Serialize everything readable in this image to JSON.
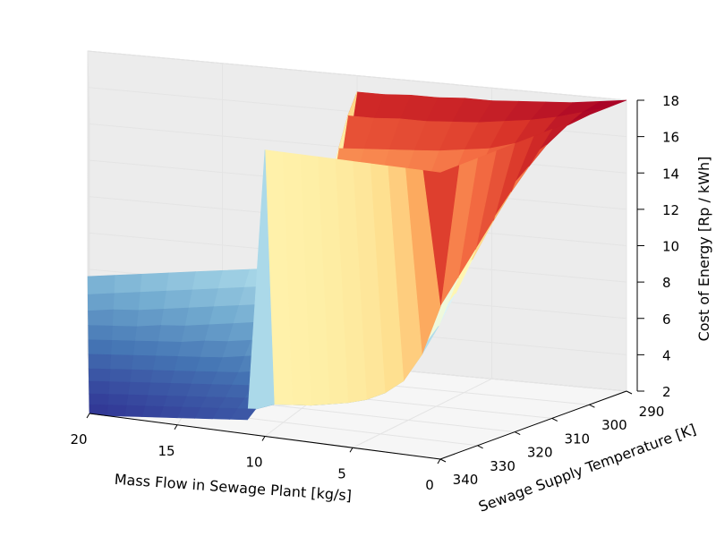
{
  "chart_data": {
    "type": "surface3d",
    "title": "",
    "colormap": "RdYlBu_r",
    "x_axis": {
      "label": "Mass Flow in Sewage Plant [kg/s]",
      "range": [
        0,
        20
      ],
      "ticks": [
        20,
        15,
        10,
        5,
        0
      ],
      "tick_labels": [
        "20",
        "15",
        "10",
        "5",
        "0"
      ]
    },
    "y_axis": {
      "label": "Sewage Supply Temperature [K]",
      "range": [
        290,
        340
      ],
      "ticks": [
        340,
        330,
        320,
        310,
        300,
        290
      ],
      "tick_labels": [
        "340",
        "330",
        "320",
        "310",
        "300",
        "290"
      ]
    },
    "z_axis": {
      "label": "Cost of Energy [Rp / kWh]",
      "range": [
        2,
        18
      ],
      "ticks": [
        2,
        4,
        6,
        8,
        10,
        12,
        14,
        16,
        18
      ],
      "tick_labels": [
        "2",
        "4",
        "6",
        "8",
        "10",
        "12",
        "14",
        "16",
        "18"
      ]
    },
    "grid": true,
    "surface_grid": {
      "mass_flow": [
        0,
        1,
        2,
        3,
        4,
        5,
        6,
        7,
        8,
        9,
        10,
        11,
        12,
        13,
        14,
        15,
        16,
        17,
        18,
        19,
        20
      ],
      "temperature": [
        290,
        295,
        300,
        305,
        310,
        315,
        320,
        325,
        330,
        335,
        340
      ],
      "cost": [
        [
          18.0,
          18.0,
          18.0,
          18.0,
          18.0,
          18.0,
          18.0,
          18.0,
          18.0,
          18.0,
          18.0
        ],
        [
          17.8,
          17.6,
          17.2,
          16.6,
          15.8,
          14.8,
          13.6,
          12.4,
          11.2,
          10.0,
          18.0
        ],
        [
          17.6,
          17.2,
          16.5,
          15.5,
          14.2,
          12.8,
          11.3,
          9.8,
          8.4,
          7.2,
          18.0
        ],
        [
          17.5,
          16.9,
          16.0,
          14.8,
          13.2,
          11.6,
          9.8,
          8.2,
          6.8,
          5.6,
          18.0
        ],
        [
          17.4,
          16.7,
          15.6,
          14.3,
          12.6,
          10.8,
          9.0,
          7.3,
          6.0,
          4.8,
          18.0
        ],
        [
          17.3,
          16.5,
          15.4,
          13.9,
          12.2,
          10.3,
          8.5,
          6.8,
          5.4,
          4.3,
          18.0
        ],
        [
          17.3,
          16.4,
          15.2,
          13.7,
          11.9,
          10.0,
          8.1,
          6.4,
          5.1,
          4.0,
          18.0
        ],
        [
          17.2,
          16.3,
          15.1,
          13.5,
          11.7,
          9.7,
          7.8,
          6.1,
          4.8,
          3.8,
          18.0
        ],
        [
          17.2,
          16.3,
          15.0,
          13.4,
          11.5,
          9.5,
          7.6,
          5.9,
          4.6,
          3.6,
          18.0
        ],
        [
          17.1,
          16.2,
          14.9,
          13.3,
          11.4,
          9.4,
          7.4,
          5.8,
          4.5,
          3.5,
          18.0
        ],
        [
          17.1,
          16.2,
          14.8,
          13.2,
          11.3,
          9.3,
          7.3,
          5.7,
          4.4,
          3.4,
          18.0
        ],
        [
          7.4,
          6.8,
          6.2,
          5.6,
          5.0,
          4.5,
          4.0,
          3.6,
          3.3,
          3.0,
          2.8
        ],
        [
          7.2,
          6.6,
          6.0,
          5.4,
          4.8,
          4.3,
          3.8,
          3.4,
          3.1,
          2.9,
          2.7
        ],
        [
          7.0,
          6.4,
          5.8,
          5.2,
          4.6,
          4.1,
          3.6,
          3.3,
          3.0,
          2.8,
          2.6
        ],
        [
          6.8,
          6.2,
          5.6,
          5.0,
          4.4,
          3.9,
          3.5,
          3.2,
          2.9,
          2.7,
          2.5
        ],
        [
          6.6,
          6.0,
          5.4,
          4.8,
          4.3,
          3.8,
          3.4,
          3.1,
          2.8,
          2.6,
          2.4
        ],
        [
          6.4,
          5.8,
          5.2,
          4.6,
          4.1,
          3.7,
          3.3,
          3.0,
          2.7,
          2.5,
          2.3
        ],
        [
          6.2,
          5.6,
          5.0,
          4.5,
          4.0,
          3.6,
          3.2,
          2.9,
          2.6,
          2.4,
          2.2
        ],
        [
          6.0,
          5.4,
          4.8,
          4.3,
          3.9,
          3.5,
          3.1,
          2.8,
          2.5,
          2.3,
          2.1
        ],
        [
          5.8,
          5.2,
          4.7,
          4.2,
          3.8,
          3.4,
          3.0,
          2.7,
          2.4,
          2.2,
          2.0
        ],
        [
          5.6,
          5.0,
          4.5,
          4.1,
          3.7,
          3.3,
          2.9,
          2.6,
          2.3,
          2.1,
          2.0
        ]
      ]
    }
  }
}
